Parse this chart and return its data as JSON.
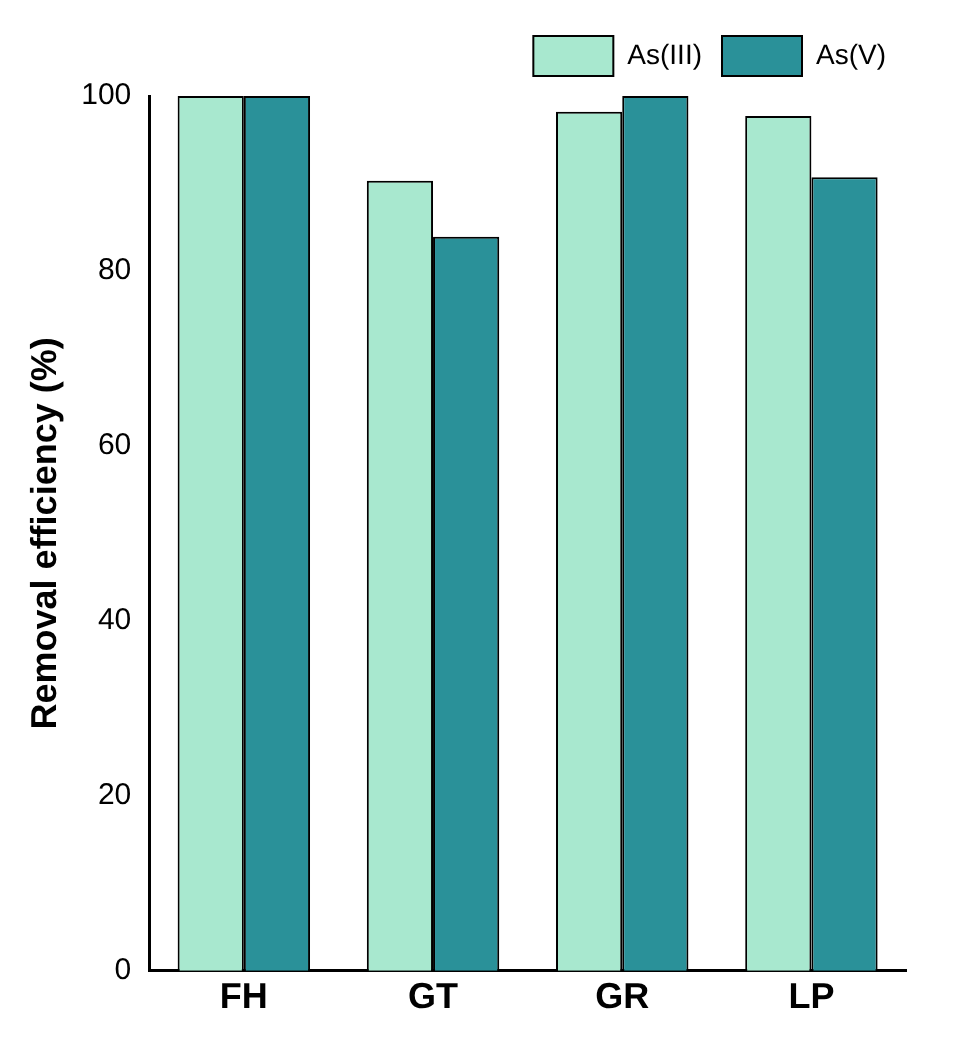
{
  "chart_data": {
    "type": "bar",
    "ylabel": "Removal efficiency (%)",
    "categories": [
      "FH",
      "GT",
      "GR",
      "LP"
    ],
    "series": [
      {
        "name": "As(III)",
        "color": "#a8e8cf",
        "values": [
          100,
          90.3,
          98.2,
          97.7
        ]
      },
      {
        "name": "As(V)",
        "color": "#2a9199",
        "values": [
          100,
          83.9,
          100,
          90.7
        ]
      }
    ],
    "ylim": [
      0,
      100
    ],
    "yticks": [
      0,
      20,
      40,
      60,
      80,
      100
    ],
    "grid": false,
    "legend": "top right"
  }
}
